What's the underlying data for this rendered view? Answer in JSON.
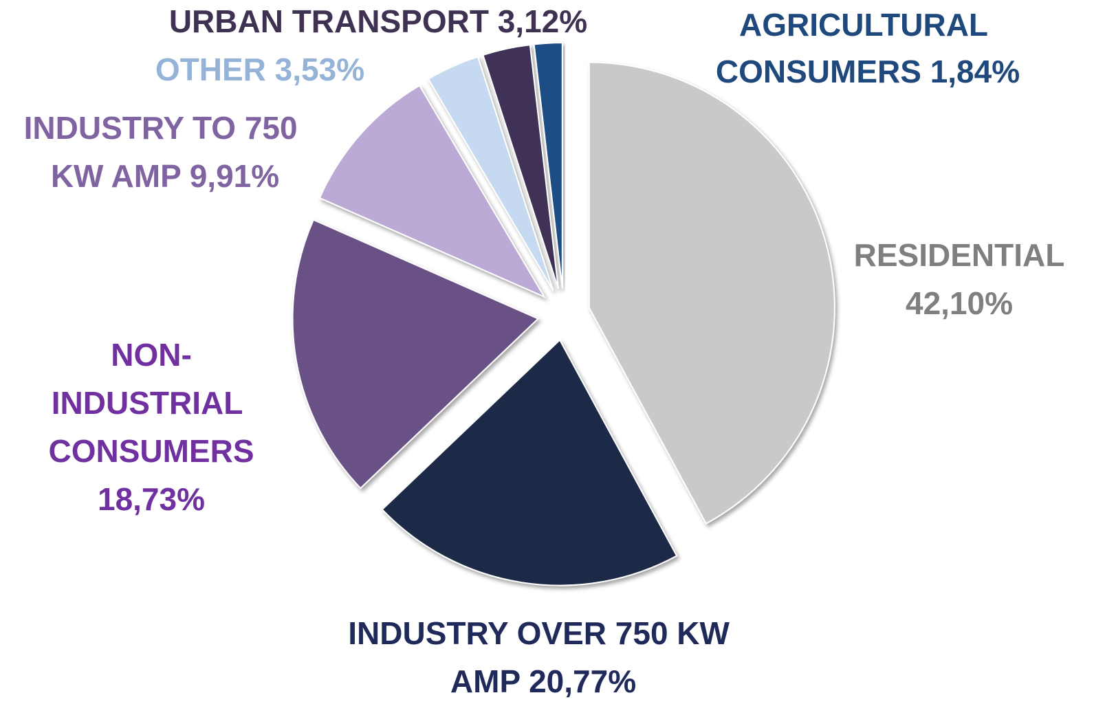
{
  "chart_data": {
    "type": "pie",
    "categories": [
      "RESIDENTIAL",
      "INDUSTRY OVER 750 KW AMP",
      "NON-INDUSTRIAL CONSUMERS",
      "INDUSTRY TO 750 KW AMP",
      "OTHER",
      "URBAN TRANSPORT",
      "AGRICULTURAL CONSUMERS"
    ],
    "values": [
      42.1,
      20.77,
      18.73,
      9.91,
      3.53,
      3.12,
      1.84
    ],
    "value_labels": [
      "42,10%",
      "20,77%",
      "18,73%",
      "9,91%",
      "3,53%",
      "3,12%",
      "1,84%"
    ],
    "colors": [
      "#c9c9c9",
      "#1b2a47",
      "#6a5185",
      "#bcaad6",
      "#c5d9f1",
      "#3f3157",
      "#1f4e85"
    ],
    "label_colors": [
      "#7f7f7f",
      "#1f2a5a",
      "#7030a0",
      "#8064a2",
      "#95b3d7",
      "#3f3151",
      "#1f497d"
    ]
  }
}
